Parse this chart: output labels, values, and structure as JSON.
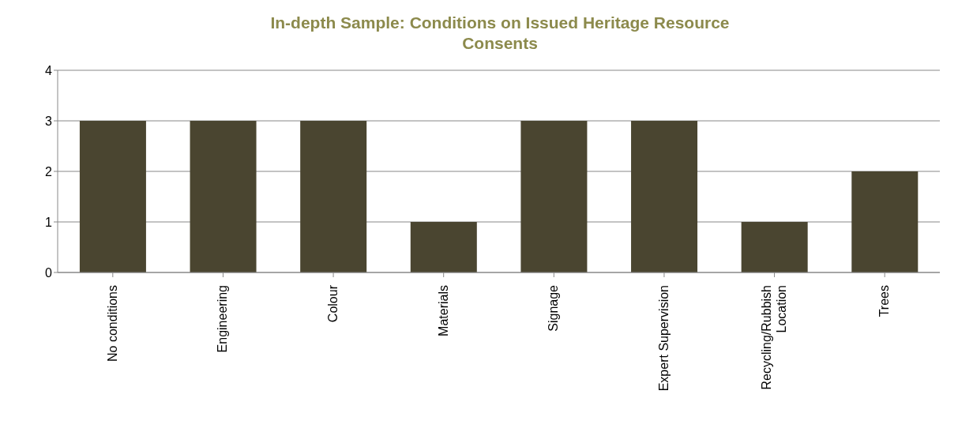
{
  "chart_data": {
    "type": "bar",
    "title": "In-depth Sample: Conditions on Issued Heritage Resource Consents",
    "categories": [
      "No conditions",
      "Engineering",
      "Colour",
      "Materials",
      "Signage",
      "Expert Supervision",
      "Recycling/Rubbish Location",
      "Trees"
    ],
    "values": [
      3,
      3,
      3,
      1,
      3,
      3,
      1,
      2
    ],
    "color": "#4a4530",
    "ylim": [
      0,
      4
    ],
    "yticks": [
      0,
      1,
      2,
      3,
      4
    ],
    "grid": "y",
    "legend": false
  }
}
